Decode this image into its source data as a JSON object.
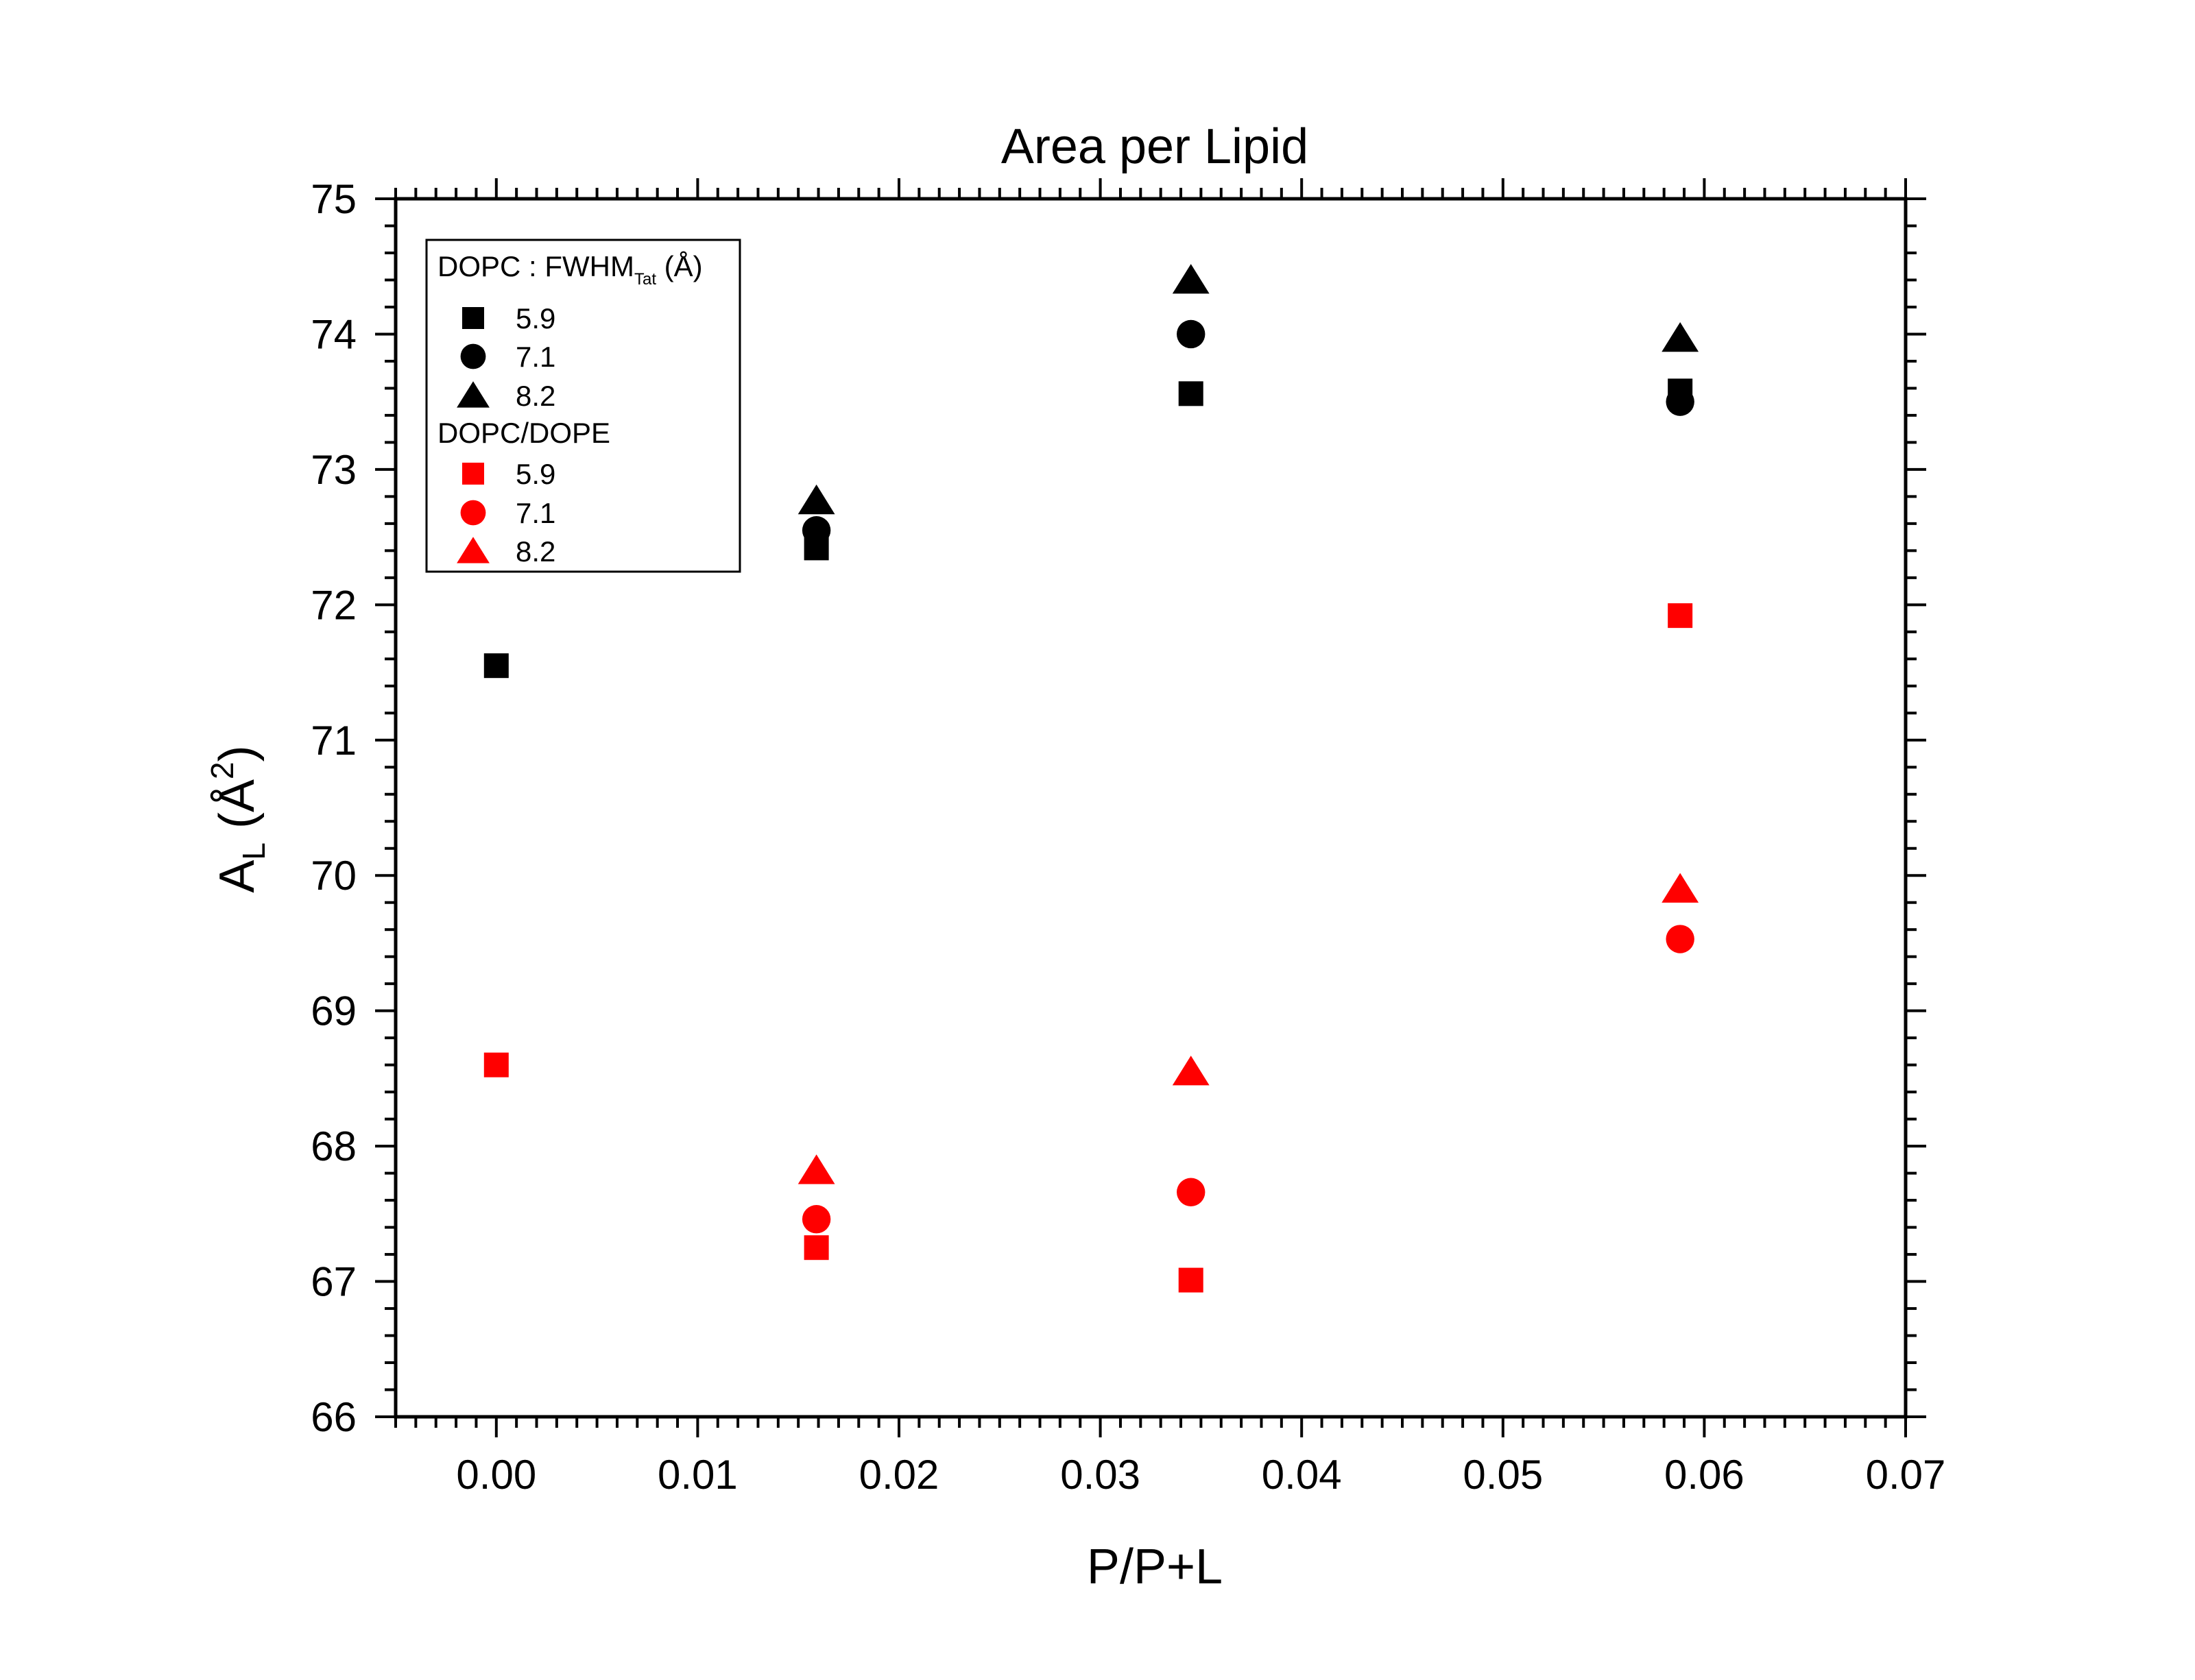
{
  "chart_data": {
    "type": "scatter",
    "title": "Area per Lipid",
    "xlabel": "P/P+L",
    "ylabel": {
      "main": "A",
      "sub": "L",
      "unit_open": " (Å",
      "sup": "2",
      "unit_close": ")"
    },
    "xlim": [
      -0.005,
      0.07
    ],
    "ylim": [
      66,
      75
    ],
    "x_ticks": [
      "0.00",
      "0.01",
      "0.02",
      "0.03",
      "0.04",
      "0.05",
      "0.06",
      "0.07"
    ],
    "x_tick_values": [
      0.0,
      0.01,
      0.02,
      0.03,
      0.04,
      0.05,
      0.06,
      0.07
    ],
    "y_ticks": [
      "66",
      "67",
      "68",
      "69",
      "70",
      "71",
      "72",
      "73",
      "74",
      "75"
    ],
    "y_tick_values": [
      66,
      67,
      68,
      69,
      70,
      71,
      72,
      73,
      74,
      75
    ],
    "grid": false,
    "legend_position": "top-left",
    "legend": {
      "group1_title": {
        "main": "DOPC : FWHM",
        "sub": "Tat",
        "tail": " (Å)"
      },
      "group2_title": "DOPC/DOPE"
    },
    "series": [
      {
        "name": "5.9",
        "group": "DOPC",
        "marker": "square",
        "color": "#000000",
        "points": [
          [
            0.0,
            71.55
          ],
          [
            0.0159,
            72.42
          ],
          [
            0.0345,
            73.56
          ],
          [
            0.0588,
            73.58
          ]
        ]
      },
      {
        "name": "7.1",
        "group": "DOPC",
        "marker": "circle",
        "color": "#000000",
        "points": [
          [
            0.0159,
            72.55
          ],
          [
            0.0345,
            74.0
          ],
          [
            0.0588,
            73.5
          ]
        ]
      },
      {
        "name": "8.2",
        "group": "DOPC",
        "marker": "triangle",
        "color": "#000000",
        "points": [
          [
            0.0159,
            72.77
          ],
          [
            0.0345,
            74.4
          ],
          [
            0.0588,
            73.97
          ]
        ]
      },
      {
        "name": "5.9",
        "group": "DOPC/DOPE",
        "marker": "square",
        "color": "#ff0000",
        "points": [
          [
            0.0,
            68.6
          ],
          [
            0.0159,
            67.25
          ],
          [
            0.0345,
            67.01
          ],
          [
            0.0588,
            71.92
          ]
        ]
      },
      {
        "name": "7.1",
        "group": "DOPC/DOPE",
        "marker": "circle",
        "color": "#ff0000",
        "points": [
          [
            0.0159,
            67.46
          ],
          [
            0.0345,
            67.66
          ],
          [
            0.0588,
            69.53
          ]
        ]
      },
      {
        "name": "8.2",
        "group": "DOPC/DOPE",
        "marker": "triangle",
        "color": "#ff0000",
        "points": [
          [
            0.0159,
            67.82
          ],
          [
            0.0345,
            68.55
          ],
          [
            0.0588,
            69.9
          ]
        ]
      }
    ]
  }
}
